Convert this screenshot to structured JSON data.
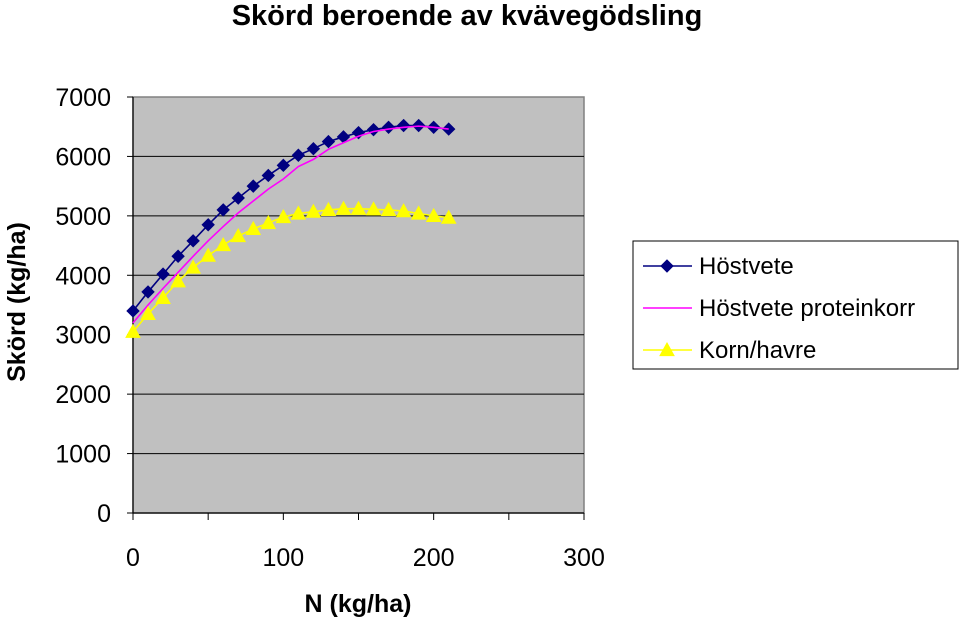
{
  "chart_data": {
    "type": "line",
    "title": "Skörd beroende av kvävegödsling",
    "xlabel": "N (kg/ha)",
    "ylabel": "Skörd (kg/ha)",
    "xlim": [
      0,
      300
    ],
    "ylim": [
      0,
      7000
    ],
    "xticks": [
      "0",
      "100",
      "200",
      "300"
    ],
    "yticks": [
      "0",
      "1000",
      "2000",
      "3000",
      "4000",
      "5000",
      "6000",
      "7000"
    ],
    "grid": "horizontal",
    "plot_background": "#c0c0c0",
    "legend_position": "right",
    "series": [
      {
        "name": "Höstvete",
        "color": "#000080",
        "marker": "diamond",
        "x": [
          0,
          10,
          20,
          30,
          40,
          50,
          60,
          70,
          80,
          90,
          100,
          110,
          120,
          130,
          140,
          150,
          160,
          170,
          180,
          190,
          200,
          210
        ],
        "y": [
          3400,
          3720,
          4020,
          4320,
          4580,
          4850,
          5100,
          5300,
          5500,
          5680,
          5850,
          6020,
          6130,
          6250,
          6330,
          6400,
          6450,
          6490,
          6520,
          6520,
          6490,
          6460
        ]
      },
      {
        "name": "Höstvete proteinkorr",
        "color": "#ff00ff",
        "marker": "none",
        "x": [
          0,
          10,
          20,
          30,
          40,
          50,
          60,
          70,
          80,
          90,
          100,
          110,
          120,
          130,
          140,
          150,
          160,
          170,
          180,
          190,
          200,
          210
        ],
        "y": [
          3200,
          3500,
          3780,
          4050,
          4320,
          4580,
          4820,
          5050,
          5250,
          5450,
          5620,
          5830,
          5950,
          6120,
          6230,
          6340,
          6420,
          6460,
          6490,
          6510,
          6490,
          6460
        ]
      },
      {
        "name": "Korn/havre",
        "color": "#ffff00",
        "marker": "triangle",
        "x": [
          0,
          10,
          20,
          30,
          40,
          50,
          60,
          70,
          80,
          90,
          100,
          110,
          120,
          130,
          140,
          150,
          160,
          170,
          180,
          190,
          200,
          210
        ],
        "y": [
          3050,
          3350,
          3620,
          3900,
          4130,
          4330,
          4510,
          4660,
          4780,
          4880,
          4980,
          5040,
          5070,
          5100,
          5120,
          5120,
          5110,
          5100,
          5080,
          5040,
          5000,
          4970
        ]
      }
    ]
  }
}
